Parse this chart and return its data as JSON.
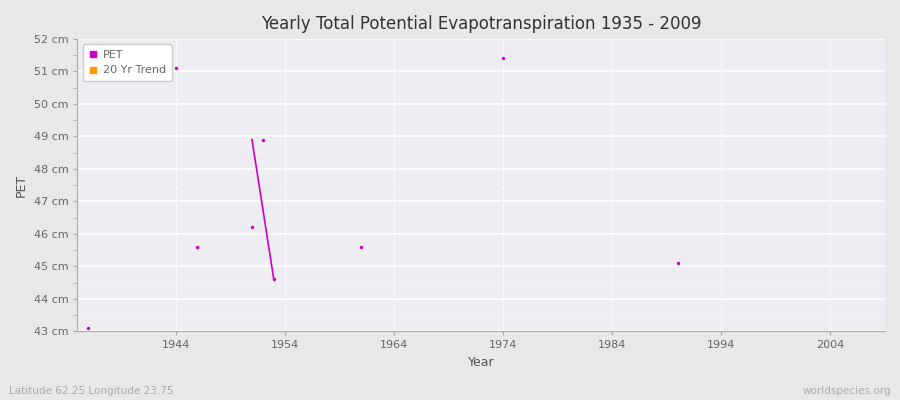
{
  "title": "Yearly Total Potential Evapotranspiration 1935 - 2009",
  "xlabel": "Year",
  "ylabel": "PET",
  "xlim": [
    1935,
    2009
  ],
  "ylim": [
    43,
    52
  ],
  "yticks": [
    43,
    44,
    45,
    46,
    47,
    48,
    49,
    50,
    51,
    52
  ],
  "ytick_labels": [
    "43 cm",
    "44 cm",
    "45 cm",
    "46 cm",
    "47 cm",
    "48 cm",
    "49 cm",
    "50 cm",
    "51 cm",
    "52 cm"
  ],
  "xticks": [
    1944,
    1954,
    1964,
    1974,
    1984,
    1994,
    2004
  ],
  "figure_bg_color": "#e8e8e8",
  "plot_bg_color": "#ededf2",
  "grid_color": "#ffffff",
  "grid_minor_color": "#f5f5f5",
  "pet_color": "#cc00cc",
  "trend_color": "#ff9900",
  "subtitle": "Latitude 62.25 Longitude 23.75",
  "watermark": "worldspecies.org",
  "title_color": "#333333",
  "tick_color": "#666666",
  "label_color": "#555555",
  "pet_data": [
    [
      1936,
      43.1
    ],
    [
      1944,
      51.1
    ],
    [
      1946,
      45.6
    ],
    [
      1951,
      46.2
    ],
    [
      1952,
      48.9
    ],
    [
      1953,
      44.6
    ],
    [
      1961,
      45.6
    ],
    [
      1974,
      51.4
    ],
    [
      1990,
      45.1
    ]
  ],
  "trend_line": [
    [
      1951,
      48.9
    ],
    [
      1953,
      44.6
    ]
  ],
  "pet_marker_size": 6,
  "trend_linewidth": 1.2
}
